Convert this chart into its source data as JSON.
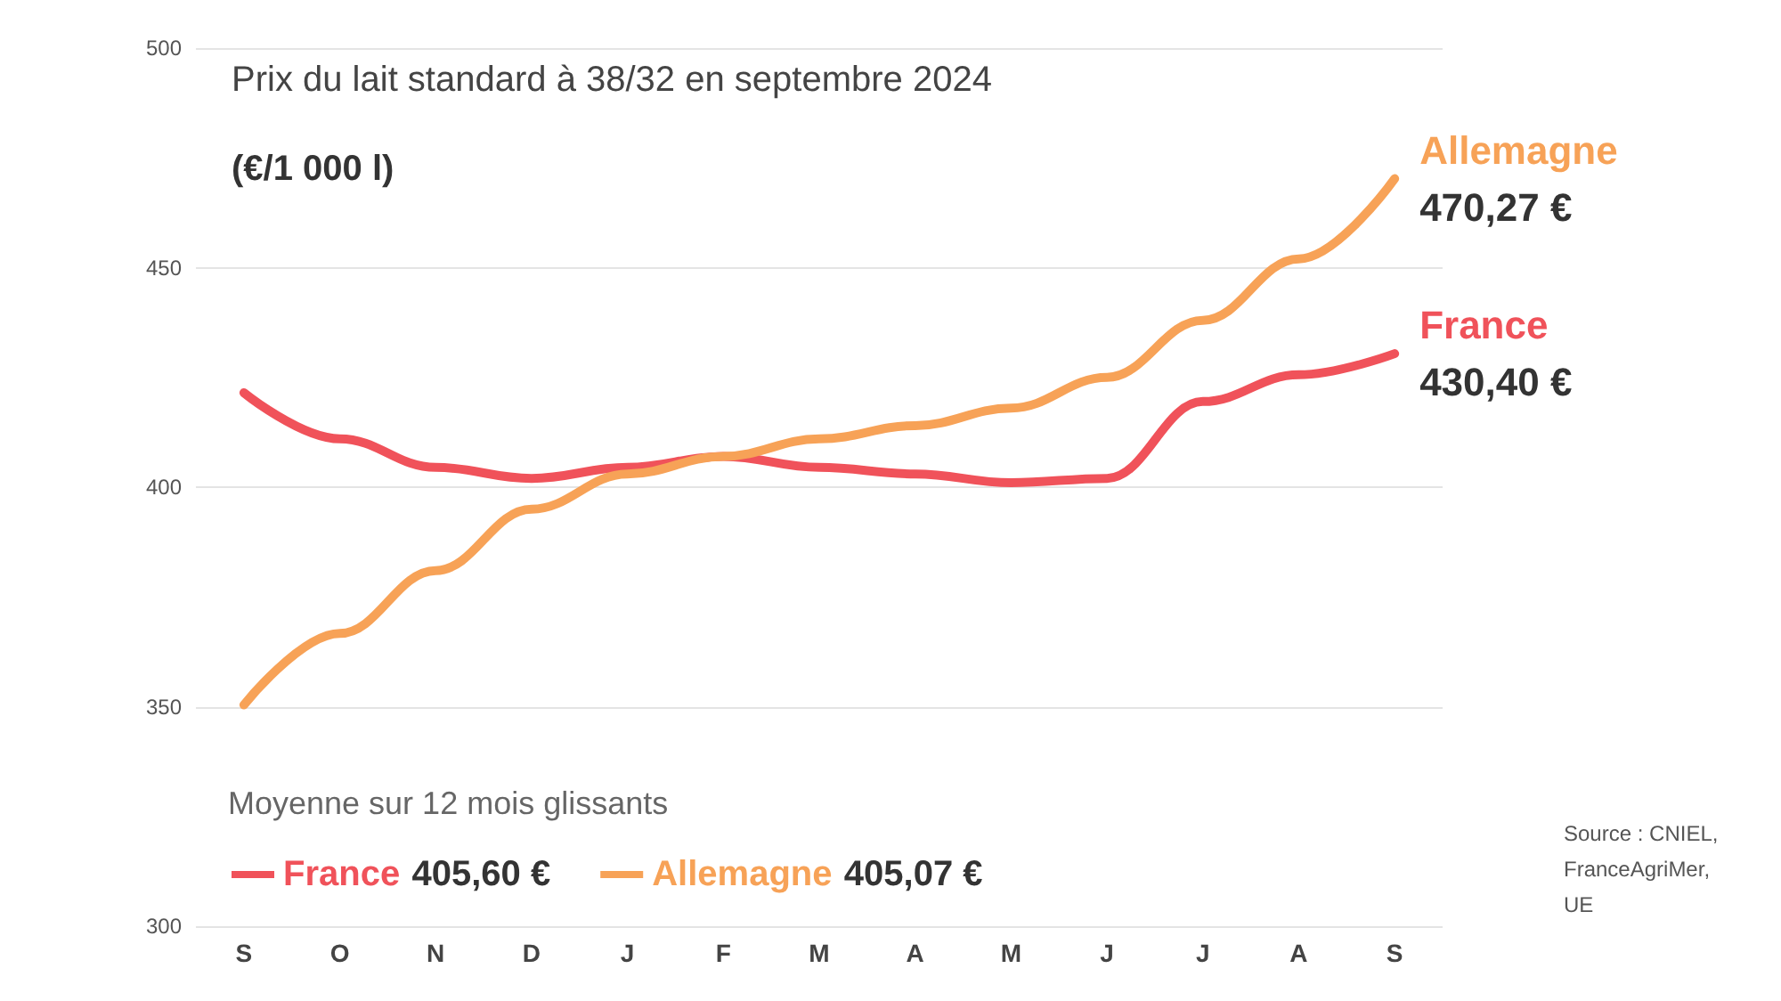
{
  "chart_data": {
    "type": "line",
    "title": "Prix du lait standard à 38/32 en septembre 2024",
    "subtitle": "(€/1 000 l)",
    "categories": [
      "S",
      "O",
      "N",
      "D",
      "J",
      "F",
      "M",
      "A",
      "M",
      "J",
      "J",
      "A",
      "S"
    ],
    "series": [
      {
        "name": "France",
        "color": "#f0525a",
        "values": [
          421.5,
          411,
          404.5,
          402,
          404.5,
          407,
          404.5,
          403,
          401,
          402,
          419.5,
          425.6,
          430.4
        ],
        "value_labels": [
          null,
          null,
          null,
          null,
          null,
          null,
          null,
          null,
          null,
          null,
          null,
          null,
          "430,40 €"
        ]
      },
      {
        "name": "Allemagne",
        "color": "#f7a257",
        "values": [
          350.4,
          366.7,
          381,
          395,
          403,
          407,
          411,
          414,
          418,
          425,
          438,
          452,
          470.27
        ],
        "value_labels": [
          null,
          null,
          null,
          null,
          null,
          null,
          null,
          null,
          null,
          null,
          null,
          null,
          "470,27 €"
        ]
      }
    ],
    "ylim": [
      300,
      500
    ],
    "yticks": [
      300,
      350,
      400,
      450,
      500
    ],
    "grid": "y",
    "legend": "bottom left",
    "legend_title": "Moyenne sur 12 mois glissants",
    "annotations": [
      "405,60 €",
      "405,07 €",
      "Source : CNIEL, FranceAgriMer, UE"
    ],
    "marker": "none",
    "line_style": "solid"
  }
}
